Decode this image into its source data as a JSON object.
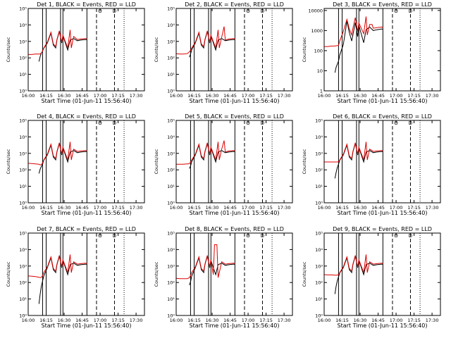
{
  "colors": {
    "events": "#000000",
    "lld": "#dd0000",
    "axis": "#000000"
  },
  "shared": {
    "x_ticks": [
      "16:00",
      "16:15",
      "16:30",
      "16:45",
      "17:00",
      "17:15",
      "17:30"
    ],
    "x_tick_minutes": [
      0,
      15,
      30,
      45,
      60,
      75,
      90
    ],
    "xlim_minutes": [
      0,
      97
    ],
    "xlabel": "Start Time (01-Jun-11 15:56:40)",
    "ylabel": "Counts/sec",
    "y_ticks_exp": [
      "10⁰",
      "10¹",
      "10²",
      "10³",
      "10⁴",
      "10⁵"
    ],
    "y_ticks_plain": [
      "1",
      "10",
      "100",
      "1000",
      "10000"
    ],
    "vlines": {
      "solid_minutes": [
        12,
        15,
        27,
        29,
        49
      ],
      "dashed_minutes": [
        57,
        72
      ],
      "dotted_minutes": [
        80
      ]
    },
    "markers": [
      {
        "label": "O",
        "minute": 60
      },
      {
        "label": "D",
        "minute": 72
      }
    ]
  },
  "chart_data": [
    {
      "type": "line",
      "title": "Det 1, BLACK = Events, RED = LLD",
      "ylim_log10": [
        0,
        5
      ],
      "tick_style": "exp",
      "series": [
        {
          "name": "Events",
          "x": [
            9,
            10,
            11,
            12,
            13,
            16,
            19,
            21,
            23,
            24,
            26,
            28,
            29,
            33,
            35,
            38,
            41,
            44,
            48,
            49
          ],
          "y": [
            60,
            120,
            200,
            260,
            380,
            800,
            3200,
            600,
            400,
            1200,
            4000,
            800,
            2200,
            300,
            1200,
            1500,
            1100,
            1200,
            1300,
            1250
          ]
        },
        {
          "name": "LLD",
          "x": [
            0,
            3,
            6,
            9,
            10,
            11,
            12,
            13,
            16,
            19,
            21,
            23,
            24,
            26,
            28,
            29,
            33,
            35,
            36,
            38,
            41,
            44,
            48,
            49
          ],
          "y": [
            160,
            160,
            170,
            170,
            170,
            200,
            260,
            400,
            900,
            3600,
            700,
            500,
            1300,
            4400,
            900,
            2400,
            400,
            5000,
            400,
            2000,
            1300,
            1400,
            1500,
            1400
          ]
        }
      ]
    },
    {
      "type": "line",
      "title": "Det 2, BLACK = Events, RED = LLD",
      "ylim_log10": [
        0,
        5
      ],
      "tick_style": "exp",
      "series": [
        {
          "name": "Events",
          "x": [
            11,
            12,
            13,
            16,
            19,
            21,
            23,
            24,
            26,
            28,
            29,
            33,
            35,
            38,
            41,
            44,
            48,
            49
          ],
          "y": [
            110,
            170,
            320,
            800,
            3200,
            600,
            400,
            1200,
            4000,
            800,
            2200,
            300,
            1200,
            1500,
            1100,
            1200,
            1300,
            1250
          ]
        },
        {
          "name": "LLD",
          "x": [
            0,
            3,
            6,
            9,
            10,
            11,
            12,
            13,
            16,
            19,
            21,
            23,
            24,
            26,
            28,
            29,
            33,
            35,
            36,
            38,
            40,
            41,
            44,
            48,
            49
          ],
          "y": [
            180,
            170,
            170,
            180,
            200,
            230,
            290,
            400,
            900,
            3600,
            700,
            500,
            1300,
            4400,
            900,
            2400,
            400,
            5000,
            400,
            1800,
            8000,
            1200,
            1400,
            1500,
            1400
          ]
        }
      ]
    },
    {
      "type": "line",
      "title": "Det 3, BLACK = Events, RED = LLD",
      "ylim_log10": [
        0,
        4.1
      ],
      "tick_style": "plain",
      "series": [
        {
          "name": "Events",
          "x": [
            9,
            10,
            12,
            13,
            16,
            19,
            21,
            23,
            24,
            26,
            28,
            29,
            33,
            35,
            38,
            41,
            44,
            48,
            49
          ],
          "y": [
            8,
            15,
            30,
            60,
            200,
            3000,
            800,
            300,
            600,
            2500,
            500,
            1800,
            250,
            1100,
            1500,
            1000,
            1100,
            1200,
            1150
          ]
        },
        {
          "name": "LLD",
          "x": [
            0,
            3,
            6,
            9,
            10,
            12,
            13,
            16,
            19,
            21,
            23,
            24,
            26,
            28,
            29,
            33,
            35,
            36,
            38,
            40,
            41,
            44,
            48,
            49
          ],
          "y": [
            160,
            160,
            170,
            170,
            175,
            180,
            300,
            900,
            3600,
            1200,
            600,
            1300,
            4400,
            900,
            2400,
            700,
            5000,
            600,
            2000,
            2000,
            1300,
            1400,
            1500,
            1400
          ]
        }
      ]
    },
    {
      "type": "line",
      "title": "Det 4, BLACK = Events, RED = LLD",
      "ylim_log10": [
        0,
        5
      ],
      "tick_style": "exp",
      "series": [
        {
          "name": "Events",
          "x": [
            9,
            10,
            11,
            12,
            13,
            16,
            19,
            21,
            23,
            24,
            26,
            28,
            29,
            33,
            35,
            38,
            41,
            44,
            48,
            49
          ],
          "y": [
            60,
            110,
            160,
            220,
            380,
            800,
            3200,
            600,
            400,
            1200,
            4000,
            800,
            2200,
            300,
            1200,
            1500,
            1100,
            1200,
            1300,
            1250
          ]
        },
        {
          "name": "LLD",
          "x": [
            0,
            3,
            6,
            9,
            10,
            11,
            12,
            13,
            16,
            19,
            21,
            23,
            24,
            26,
            28,
            29,
            33,
            35,
            36,
            38,
            41,
            44,
            48,
            49
          ],
          "y": [
            250,
            240,
            230,
            220,
            200,
            210,
            260,
            400,
            900,
            3600,
            700,
            500,
            1300,
            4400,
            900,
            2400,
            400,
            5000,
            400,
            1800,
            1300,
            1400,
            1500,
            1400
          ]
        }
      ]
    },
    {
      "type": "line",
      "title": "Det 5, BLACK = Events, RED = LLD",
      "ylim_log10": [
        0,
        5
      ],
      "tick_style": "exp",
      "series": [
        {
          "name": "Events",
          "x": [
            11,
            12,
            13,
            16,
            19,
            21,
            23,
            24,
            26,
            28,
            29,
            33,
            35,
            38,
            41,
            44,
            48,
            49
          ],
          "y": [
            120,
            170,
            320,
            800,
            3200,
            600,
            400,
            1200,
            4000,
            800,
            2200,
            300,
            1200,
            1500,
            1100,
            1200,
            1300,
            1250
          ]
        },
        {
          "name": "LLD",
          "x": [
            0,
            3,
            6,
            9,
            10,
            11,
            12,
            13,
            16,
            19,
            21,
            23,
            24,
            26,
            28,
            29,
            33,
            35,
            36,
            38,
            40,
            41,
            44,
            48,
            49
          ],
          "y": [
            220,
            220,
            220,
            230,
            230,
            240,
            290,
            400,
            900,
            3600,
            700,
            500,
            1300,
            4400,
            900,
            2400,
            400,
            5000,
            400,
            1800,
            6000,
            1200,
            1400,
            1500,
            1400
          ]
        }
      ]
    },
    {
      "type": "line",
      "title": "Det 6, BLACK = Events, RED = LLD",
      "ylim_log10": [
        0,
        5
      ],
      "tick_style": "exp",
      "series": [
        {
          "name": "Events",
          "x": [
            9,
            10,
            11,
            12,
            13,
            16,
            19,
            21,
            23,
            24,
            26,
            28,
            29,
            33,
            35,
            38,
            41,
            44,
            48,
            49
          ],
          "y": [
            30,
            70,
            140,
            220,
            380,
            800,
            3200,
            600,
            400,
            1200,
            4000,
            800,
            2200,
            300,
            1200,
            1500,
            1100,
            1200,
            1300,
            1250
          ]
        },
        {
          "name": "LLD",
          "x": [
            0,
            3,
            6,
            9,
            10,
            11,
            12,
            13,
            16,
            19,
            21,
            23,
            24,
            26,
            28,
            29,
            33,
            35,
            36,
            38,
            41,
            44,
            48,
            49
          ],
          "y": [
            300,
            300,
            300,
            300,
            300,
            300,
            310,
            400,
            900,
            3600,
            700,
            500,
            1300,
            4400,
            900,
            2400,
            400,
            5000,
            400,
            1800,
            1300,
            1400,
            1500,
            1400
          ]
        }
      ]
    },
    {
      "type": "line",
      "title": "Det 7, BLACK = Events, RED = LLD",
      "ylim_log10": [
        0,
        5
      ],
      "tick_style": "exp",
      "series": [
        {
          "name": "Events",
          "x": [
            9,
            10,
            11,
            12,
            13,
            16,
            19,
            21,
            23,
            24,
            26,
            28,
            29,
            33,
            35,
            38,
            41,
            44,
            48,
            49
          ],
          "y": [
            5,
            20,
            60,
            120,
            250,
            800,
            3200,
            600,
            400,
            1200,
            4000,
            800,
            2200,
            300,
            1200,
            1500,
            1100,
            1200,
            1300,
            1250
          ]
        },
        {
          "name": "LLD",
          "x": [
            0,
            3,
            6,
            9,
            10,
            11,
            12,
            13,
            16,
            19,
            21,
            23,
            24,
            26,
            28,
            29,
            33,
            35,
            36,
            38,
            41,
            44,
            48,
            49
          ],
          "y": [
            250,
            240,
            230,
            210,
            200,
            210,
            260,
            400,
            900,
            3600,
            700,
            500,
            1300,
            4400,
            900,
            2400,
            400,
            5000,
            400,
            1800,
            1300,
            1400,
            1500,
            1400
          ]
        }
      ]
    },
    {
      "type": "line",
      "title": "Det 8, BLACK = Events, RED = LLD",
      "ylim_log10": [
        0,
        5
      ],
      "tick_style": "exp",
      "series": [
        {
          "name": "Events",
          "x": [
            11,
            12,
            13,
            16,
            19,
            21,
            23,
            24,
            26,
            28,
            29,
            33,
            35,
            38,
            41,
            44,
            48,
            49
          ],
          "y": [
            70,
            110,
            250,
            800,
            3200,
            600,
            400,
            1200,
            4000,
            800,
            2200,
            300,
            1200,
            1500,
            1100,
            1200,
            1300,
            1250
          ]
        },
        {
          "name": "LLD",
          "x": [
            0,
            3,
            6,
            9,
            10,
            11,
            12,
            13,
            16,
            19,
            21,
            23,
            24,
            26,
            28,
            29,
            31,
            32,
            34,
            35,
            36,
            38,
            41,
            44,
            48,
            49
          ],
          "y": [
            180,
            170,
            170,
            170,
            180,
            200,
            260,
            400,
            900,
            3600,
            700,
            500,
            1300,
            4400,
            900,
            2400,
            300,
            20000,
            20000,
            200,
            400,
            1800,
            1300,
            1400,
            1500,
            1400
          ]
        }
      ]
    },
    {
      "type": "line",
      "title": "Det 9, BLACK = Events, RED = LLD",
      "ylim_log10": [
        0,
        5
      ],
      "tick_style": "exp",
      "series": [
        {
          "name": "Events",
          "x": [
            9,
            10,
            11,
            12,
            13,
            16,
            19,
            21,
            23,
            24,
            26,
            28,
            29,
            33,
            35,
            38,
            41,
            44,
            48,
            49
          ],
          "y": [
            20,
            60,
            130,
            220,
            380,
            800,
            3200,
            600,
            400,
            1200,
            4000,
            800,
            2200,
            300,
            1200,
            1500,
            1100,
            1200,
            1300,
            1250
          ]
        },
        {
          "name": "LLD",
          "x": [
            0,
            3,
            6,
            9,
            10,
            11,
            12,
            13,
            16,
            19,
            21,
            23,
            24,
            26,
            28,
            29,
            33,
            35,
            36,
            38,
            41,
            44,
            48,
            49
          ],
          "y": [
            300,
            290,
            290,
            280,
            280,
            280,
            300,
            400,
            900,
            3600,
            700,
            500,
            1300,
            4400,
            900,
            2400,
            400,
            5000,
            400,
            1800,
            1300,
            1400,
            1500,
            1400
          ]
        }
      ]
    }
  ]
}
